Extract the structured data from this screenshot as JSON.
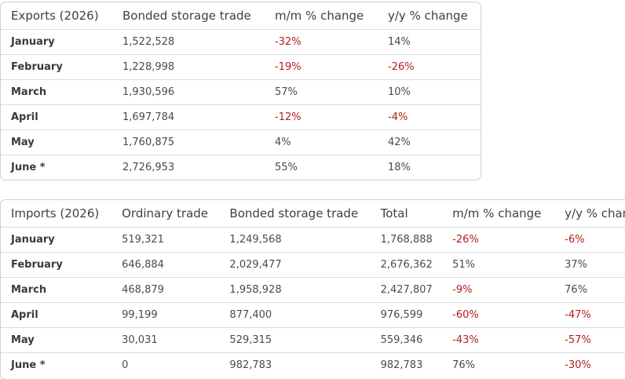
{
  "exports": {
    "headers": [
      "Exports (2026)",
      "Bonded storage trade",
      "m/m % change",
      "y/y % change"
    ],
    "rows": [
      [
        "January",
        "1,522,528",
        "-32%",
        "14%"
      ],
      [
        "February",
        "1,228,998",
        "-19%",
        "-26%"
      ],
      [
        "March",
        "1,930,596",
        "57%",
        "10%"
      ],
      [
        "April",
        "1,697,784",
        "-12%",
        "-4%"
      ],
      [
        "May",
        "1,760,875",
        "4%",
        "42%"
      ],
      [
        "June *",
        "2,726,953",
        "55%",
        "18%"
      ]
    ]
  },
  "imports": {
    "headers": [
      "Imports (2026)",
      "Ordinary trade",
      "Bonded storage trade",
      "Total",
      "m/m % change",
      "y/y % change"
    ],
    "rows": [
      [
        "January",
        "519,321",
        "1,249,568",
        "1,768,888",
        "-26%",
        "-6%"
      ],
      [
        "February",
        "646,884",
        "2,029,477",
        "2,676,362",
        "51%",
        "37%"
      ],
      [
        "March",
        "468,879",
        "1,958,928",
        "2,427,807",
        "-9%",
        "76%"
      ],
      [
        "April",
        "99,199",
        "877,400",
        "976,599",
        "-60%",
        "-47%"
      ],
      [
        "May",
        "30,031",
        "529,315",
        "559,346",
        "-43%",
        "-57%"
      ],
      [
        "June *",
        "0",
        "982,783",
        "982,783",
        "76%",
        "-30%"
      ]
    ]
  },
  "colors": {
    "negative": "#b0201c",
    "border": "#d0d0d0",
    "row_divider": "#dcdcdc"
  }
}
